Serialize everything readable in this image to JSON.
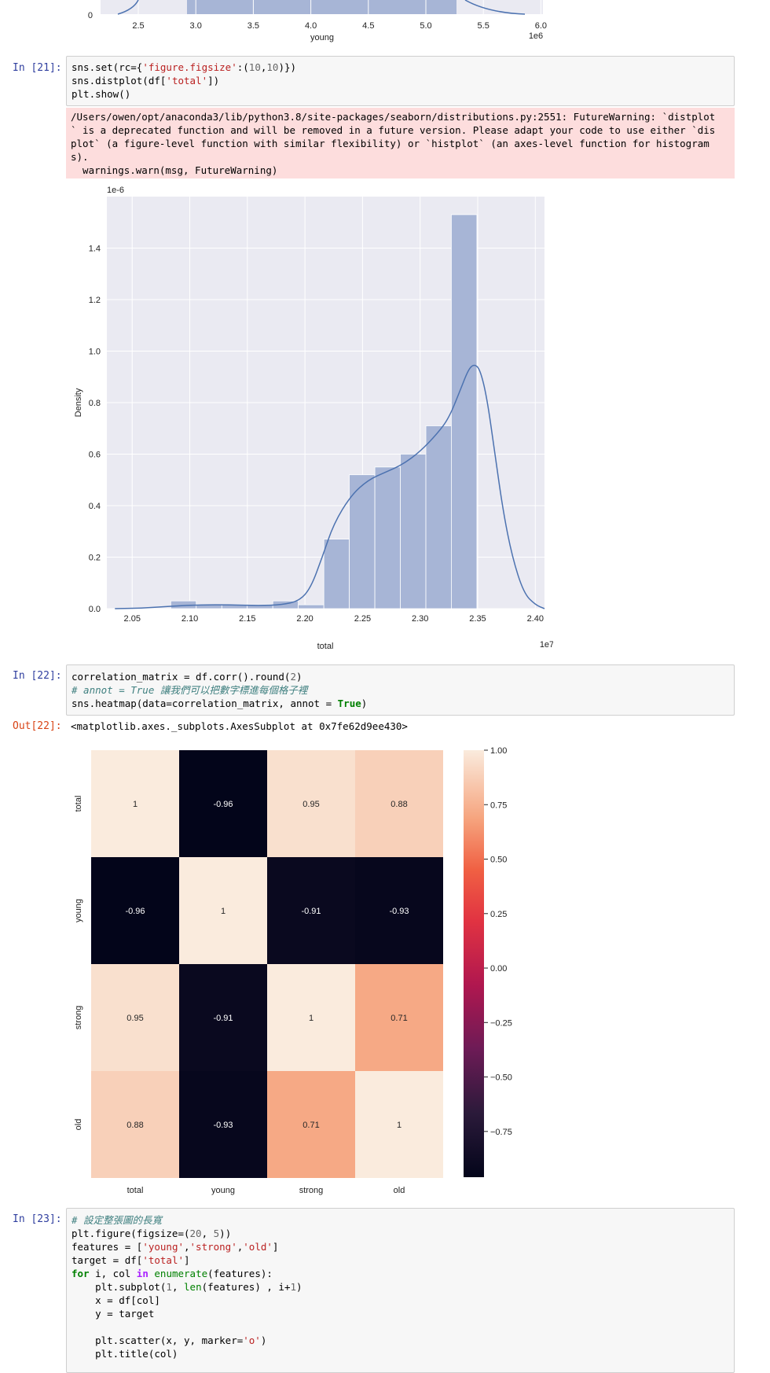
{
  "top_chart": {
    "xticks": [
      "2.5",
      "3.0",
      "3.5",
      "4.0",
      "4.5",
      "5.0",
      "5.5",
      "6.0"
    ],
    "y_first_tick": "0",
    "xlabel": "young",
    "offset": "1e6"
  },
  "cell21": {
    "prompt": "In [21]:",
    "code": [
      [
        [
          "sns.set(rc={",
          ""
        ],
        [
          "'figure.figsize'",
          "str"
        ],
        [
          ":(",
          ""
        ],
        [
          "10",
          "num"
        ],
        [
          ",",
          ""
        ],
        [
          "10",
          "num"
        ],
        [
          ")})",
          ""
        ]
      ],
      [
        [
          "sns.distplot(df[",
          ""
        ],
        [
          "'total'",
          "str"
        ],
        [
          "])",
          ""
        ]
      ],
      [
        [
          "plt.show()",
          ""
        ]
      ]
    ],
    "stderr": [
      "/Users/owen/opt/anaconda3/lib/python3.8/site-packages/seaborn/distributions.py:2551: FutureWarning: `distplot",
      "` is a deprecated function and will be removed in a future version. Please adapt your code to use either `dis",
      "plot` (a figure-level function with similar flexibility) or `histplot` (an axes-level function for histogram",
      "s).",
      "  warnings.warn(msg, FutureWarning)"
    ]
  },
  "dist_chart": {
    "chart_data": {
      "type": "bar",
      "xlabel": "total",
      "ylabel": "Density",
      "x_offset": "1e7",
      "y_offset": "1e-6",
      "xlim": [
        2.028,
        2.408
      ],
      "ylim": [
        0,
        1.6
      ],
      "xticks": [
        2.05,
        2.1,
        2.15,
        2.2,
        2.25,
        2.3,
        2.35,
        2.4
      ],
      "xtick_labels": [
        "2.05",
        "2.10",
        "2.15",
        "2.20",
        "2.25",
        "2.30",
        "2.35",
        "2.40"
      ],
      "yticks": [
        0.0,
        0.2,
        0.4,
        0.6,
        0.8,
        1.0,
        1.2,
        1.4
      ],
      "ytick_labels": [
        "0.0",
        "0.2",
        "0.4",
        "0.6",
        "0.8",
        "1.0",
        "1.2",
        "1.4"
      ],
      "bin_edges": [
        2.0835,
        2.1056,
        2.1278,
        2.1499,
        2.1721,
        2.1942,
        2.2164,
        2.2385,
        2.2607,
        2.2828,
        2.305,
        2.3271,
        2.3493,
        2.3714
      ],
      "densities": [
        0.03,
        0.015,
        0.015,
        0.015,
        0.03,
        0.015,
        0.27,
        0.52,
        0.55,
        0.6,
        0.71,
        1.53,
        0.0
      ],
      "kde": [
        [
          2.035,
          0.0
        ],
        [
          2.06,
          0.002
        ],
        [
          2.085,
          0.01
        ],
        [
          2.11,
          0.015
        ],
        [
          2.135,
          0.015
        ],
        [
          2.16,
          0.012
        ],
        [
          2.18,
          0.015
        ],
        [
          2.195,
          0.03
        ],
        [
          2.205,
          0.08
        ],
        [
          2.215,
          0.2
        ],
        [
          2.225,
          0.33
        ],
        [
          2.24,
          0.44
        ],
        [
          2.255,
          0.5
        ],
        [
          2.27,
          0.53
        ],
        [
          2.285,
          0.56
        ],
        [
          2.3,
          0.61
        ],
        [
          2.315,
          0.68
        ],
        [
          2.325,
          0.74
        ],
        [
          2.335,
          0.85
        ],
        [
          2.342,
          0.93
        ],
        [
          2.347,
          0.95
        ],
        [
          2.352,
          0.93
        ],
        [
          2.358,
          0.82
        ],
        [
          2.365,
          0.6
        ],
        [
          2.372,
          0.38
        ],
        [
          2.38,
          0.2
        ],
        [
          2.39,
          0.06
        ],
        [
          2.4,
          0.015
        ],
        [
          2.408,
          0.0
        ]
      ]
    }
  },
  "cell22": {
    "prompt": "In [22]:",
    "code": [
      [
        [
          "correlation_matrix = df.corr().round(",
          ""
        ],
        [
          "2",
          "num"
        ],
        [
          ")",
          ""
        ]
      ],
      [
        [
          "# annot = True 讓我們可以把數字標進每個格子裡",
          "cm"
        ]
      ],
      [
        [
          "sns.heatmap(data=correlation_matrix, annot = ",
          ""
        ],
        [
          "True",
          "kw"
        ],
        [
          ")",
          ""
        ]
      ]
    ],
    "out_prompt": "Out[22]:",
    "out_text": "<matplotlib.axes._subplots.AxesSubplot at 0x7fe62d9ee430>"
  },
  "heatmap": {
    "chart_data": {
      "type": "heatmap",
      "rows": [
        "total",
        "young",
        "strong",
        "old"
      ],
      "cols": [
        "total",
        "young",
        "strong",
        "old"
      ],
      "values": [
        [
          1,
          -0.96,
          0.95,
          0.88
        ],
        [
          -0.96,
          1,
          -0.91,
          -0.93
        ],
        [
          0.95,
          -0.91,
          1,
          0.71
        ],
        [
          0.88,
          -0.93,
          0.71,
          1
        ]
      ],
      "annotations": [
        [
          "1",
          "-0.96",
          "0.95",
          "0.88"
        ],
        [
          "-0.96",
          "1",
          "-0.91",
          "-0.93"
        ],
        [
          "0.95",
          "-0.91",
          "1",
          "0.71"
        ],
        [
          "0.88",
          "-0.93",
          "0.71",
          "1"
        ]
      ],
      "colorbar_ticks": [
        1.0,
        0.75,
        0.5,
        0.25,
        0.0,
        -0.25,
        -0.5,
        -0.75
      ],
      "colorbar_labels": [
        "1.00",
        "0.75",
        "0.50",
        "0.25",
        "0.00",
        "−0.25",
        "−0.50",
        "−0.75"
      ],
      "vmin": -0.96,
      "vmax": 1.0
    }
  },
  "cell23": {
    "prompt": "In [23]:",
    "code": [
      [
        [
          "# 設定整張圖的長寬",
          "cm"
        ]
      ],
      [
        [
          "plt.figure(figsize=(",
          ""
        ],
        [
          "20",
          "num"
        ],
        [
          ", ",
          ""
        ],
        [
          "5",
          "num"
        ],
        [
          "))",
          ""
        ]
      ],
      [
        [
          "features = [",
          ""
        ],
        [
          "'young'",
          "str"
        ],
        [
          ",",
          ""
        ],
        [
          "'strong'",
          "str"
        ],
        [
          ",",
          ""
        ],
        [
          "'old'",
          "str"
        ],
        [
          "]",
          ""
        ]
      ],
      [
        [
          "target = df[",
          ""
        ],
        [
          "'total'",
          "str"
        ],
        [
          "]",
          ""
        ]
      ],
      [
        [
          "for",
          "kw"
        ],
        [
          " i, col ",
          ""
        ],
        [
          "in",
          "kw2"
        ],
        [
          " ",
          ""
        ],
        [
          "enumerate",
          "bi"
        ],
        [
          "(features):",
          ""
        ]
      ],
      [
        [
          "    plt.subplot(",
          ""
        ],
        [
          "1",
          "num"
        ],
        [
          ", ",
          ""
        ],
        [
          "len",
          "bi"
        ],
        [
          "(features) , i+",
          ""
        ],
        [
          "1",
          "num"
        ],
        [
          ")",
          ""
        ]
      ],
      [
        [
          "    x = df[col]",
          ""
        ]
      ],
      [
        [
          "    y = target",
          ""
        ]
      ],
      [
        [
          "",
          ""
        ]
      ],
      [
        [
          "    plt.scatter(x, y, marker=",
          ""
        ],
        [
          "'o'",
          "str"
        ],
        [
          ")",
          ""
        ]
      ],
      [
        [
          "    plt.title(col)",
          ""
        ]
      ]
    ]
  }
}
